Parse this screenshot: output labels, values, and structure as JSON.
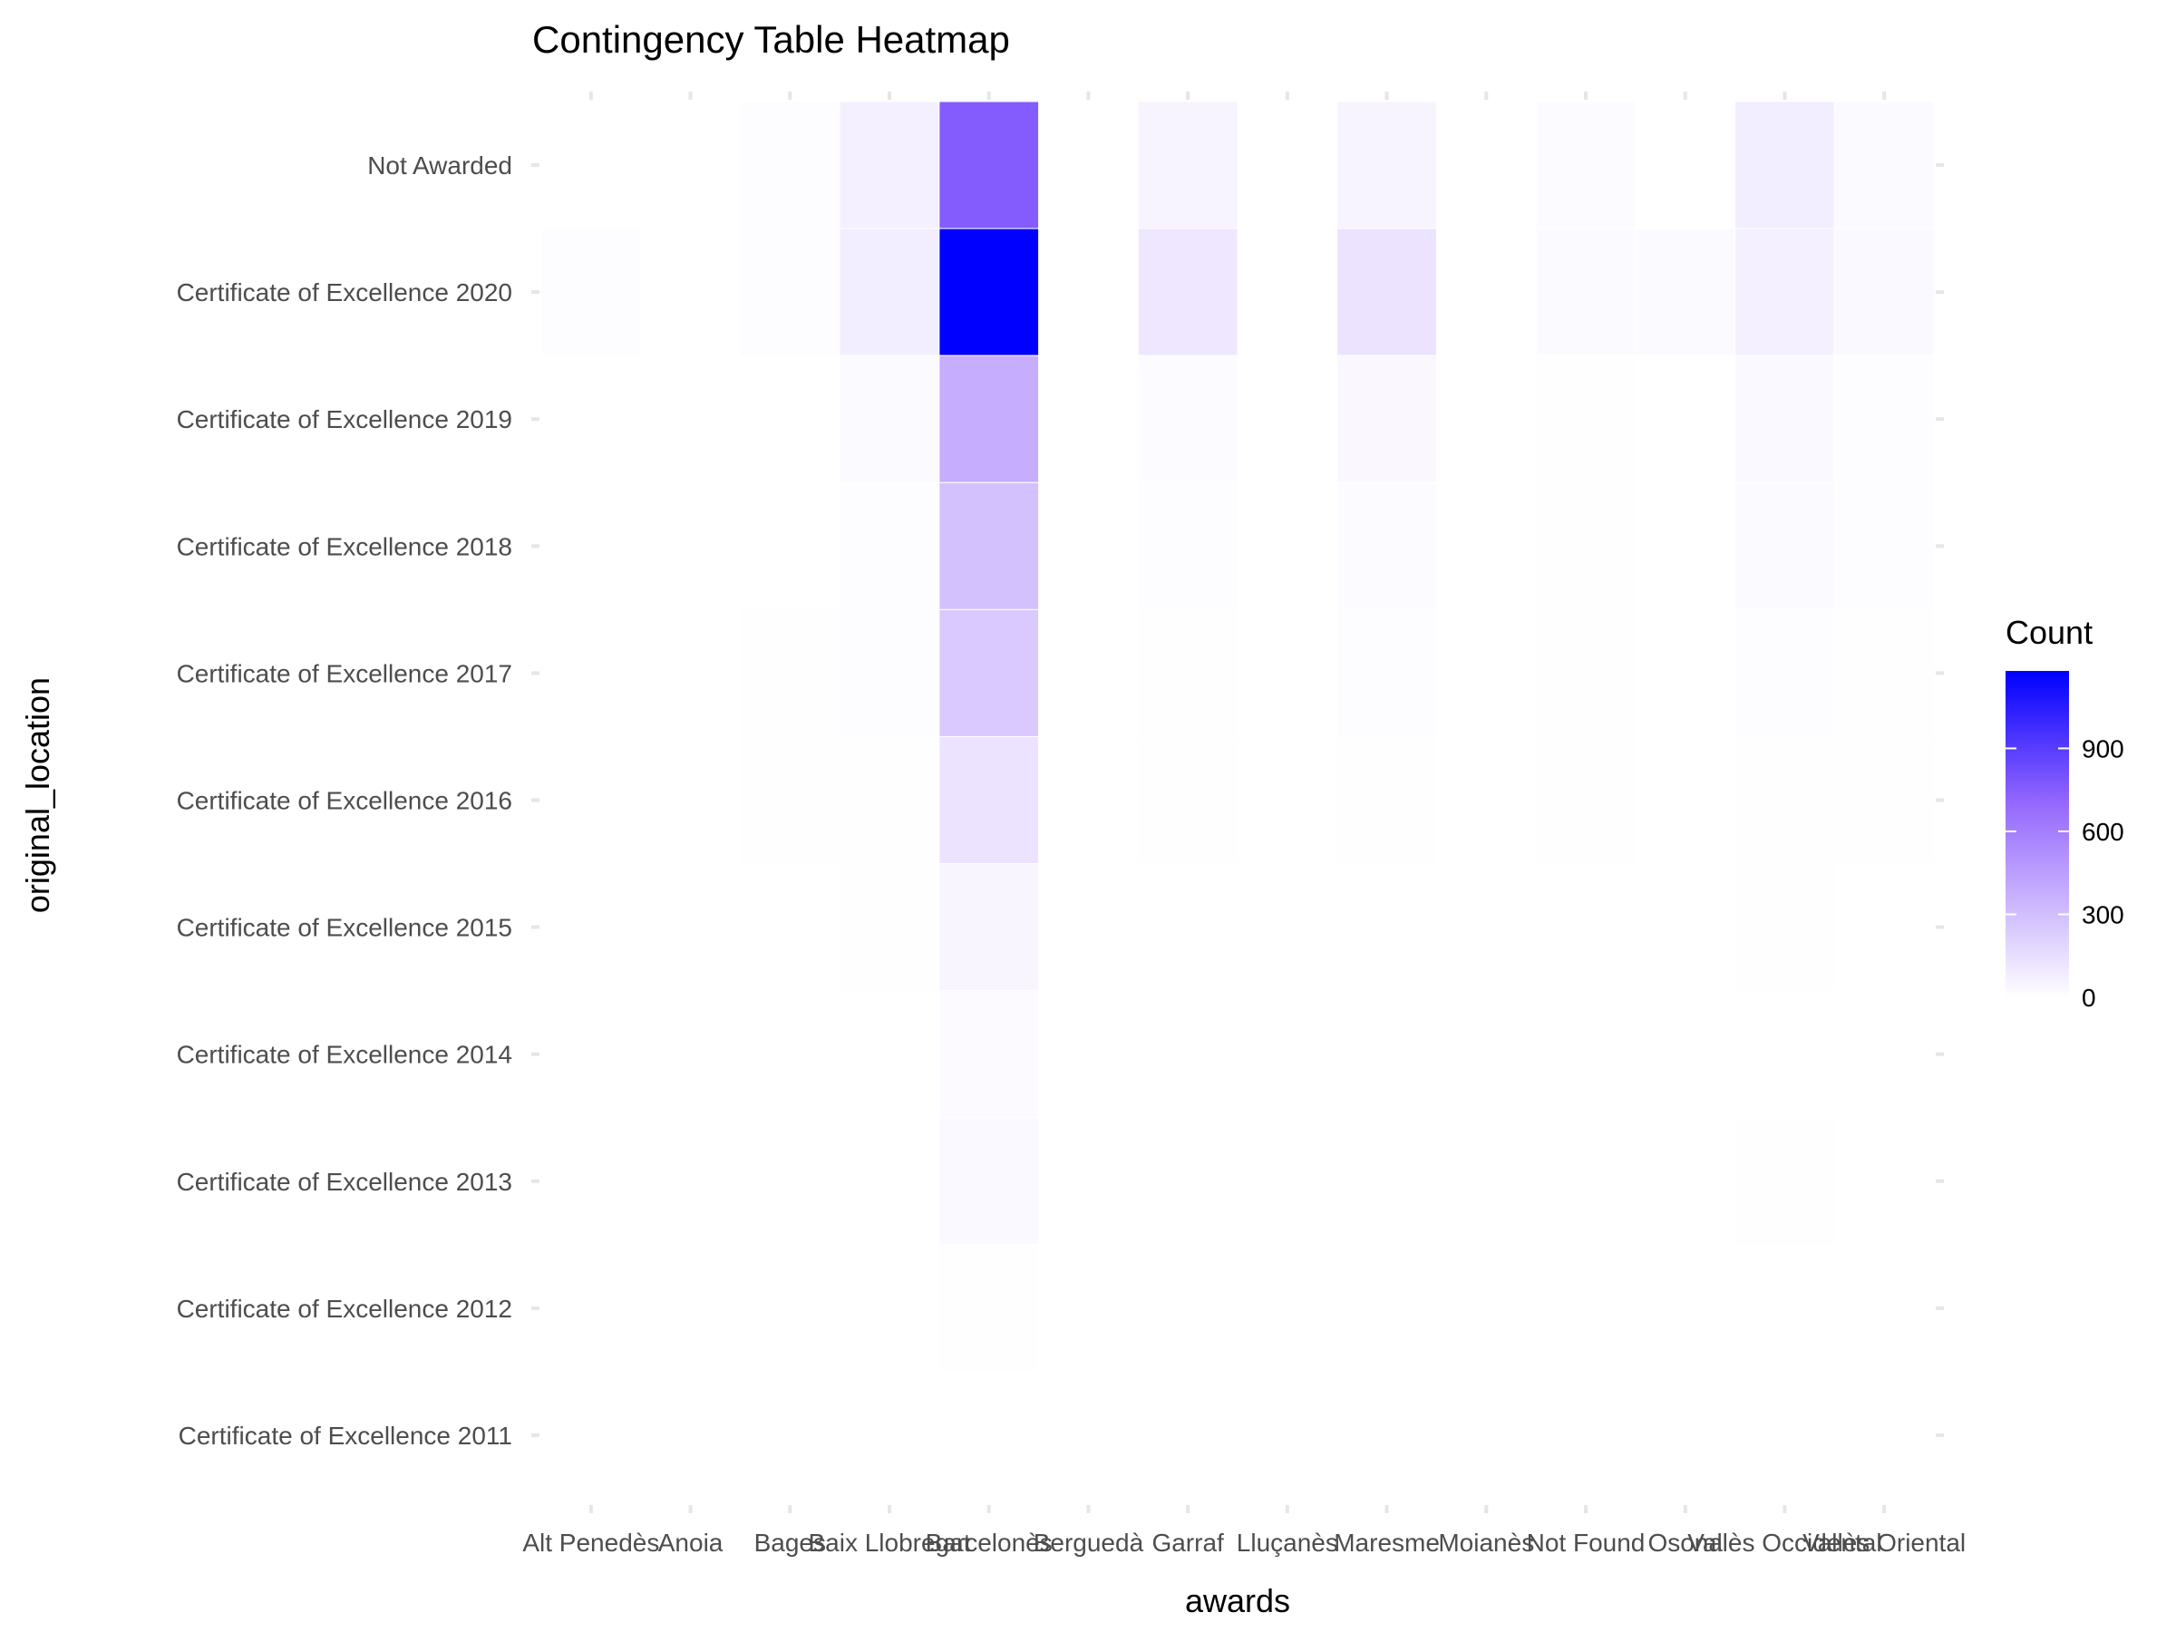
{
  "chart_data": {
    "type": "heatmap",
    "title": "Contingency Table Heatmap",
    "xlabel": "awards",
    "ylabel": "original_location",
    "x_categories": [
      "Alt Penedès",
      "Anoia",
      "Bages",
      "Baix Llobregat",
      "Barcelonès",
      "Berguedà",
      "Garraf",
      "Lluçanès",
      "Maresme",
      "Moianès",
      "Not Found",
      "Osona",
      "Vallès Occidental",
      "Vallès Oriental"
    ],
    "y_categories": [
      "Not Awarded",
      "Certificate of Excellence 2020",
      "Certificate of Excellence 2019",
      "Certificate of Excellence 2018",
      "Certificate of Excellence 2017",
      "Certificate of Excellence 2016",
      "Certificate of Excellence 2015",
      "Certificate of Excellence 2014",
      "Certificate of Excellence 2013",
      "Certificate of Excellence 2012",
      "Certificate of Excellence 2011"
    ],
    "values": [
      [
        null,
        null,
        12,
        70,
        760,
        null,
        55,
        null,
        55,
        null,
        18,
        null,
        85,
        25
      ],
      [
        10,
        null,
        12,
        85,
        1180,
        null,
        110,
        null,
        130,
        null,
        25,
        25,
        70,
        30
      ],
      [
        null,
        null,
        null,
        25,
        380,
        null,
        20,
        null,
        35,
        null,
        8,
        null,
        30,
        12
      ],
      [
        null,
        null,
        null,
        15,
        290,
        null,
        12,
        null,
        20,
        null,
        8,
        null,
        25,
        10
      ],
      [
        null,
        null,
        8,
        12,
        250,
        null,
        8,
        null,
        10,
        null,
        6,
        null,
        12,
        8
      ],
      [
        null,
        null,
        6,
        8,
        130,
        null,
        8,
        null,
        8,
        null,
        6,
        null,
        6,
        5
      ],
      [
        null,
        null,
        null,
        5,
        45,
        null,
        null,
        null,
        null,
        null,
        null,
        null,
        6,
        null
      ],
      [
        null,
        null,
        null,
        null,
        22,
        null,
        null,
        null,
        null,
        null,
        null,
        null,
        null,
        null
      ],
      [
        null,
        null,
        null,
        null,
        30,
        null,
        null,
        null,
        null,
        null,
        null,
        null,
        5,
        null
      ],
      [
        null,
        null,
        null,
        null,
        4,
        null,
        null,
        null,
        null,
        null,
        null,
        null,
        null,
        null
      ],
      [
        null,
        null,
        null,
        null,
        null,
        null,
        null,
        null,
        null,
        null,
        null,
        null,
        null,
        null
      ]
    ],
    "color_scale": {
      "low": "#ffffff",
      "mid": "#9467fd",
      "high": "#0000ff",
      "min": 0,
      "max": 1180
    },
    "legend": {
      "title": "Count",
      "ticks": [
        "0",
        "300",
        "600",
        "900"
      ],
      "tick_values": [
        0,
        300,
        600,
        900
      ],
      "position": "right"
    },
    "grid": true
  }
}
